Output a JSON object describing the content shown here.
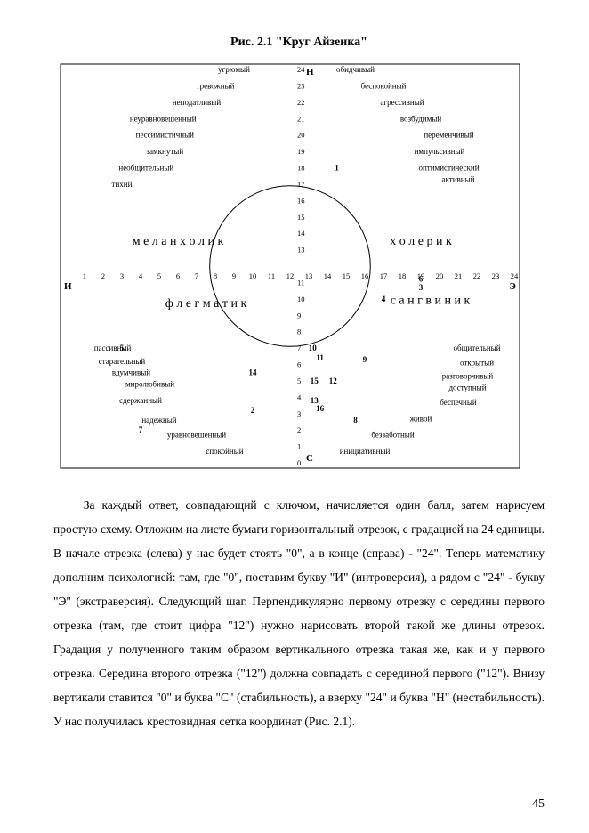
{
  "figure": {
    "caption": "Рис. 2.1   \"Круг Айзенка\"",
    "box": {
      "stroke": "#000000",
      "stroke_width": 1,
      "fill": "none"
    },
    "circle": {
      "cx_val": 12,
      "cy_val": 12,
      "radius_units": 4.3,
      "stroke": "#000000"
    },
    "axis_pole_labels": {
      "top": "Н",
      "bottom": "С",
      "left": "И",
      "right": "Э"
    },
    "quadrant_labels": {
      "top_left": "меланхолик",
      "top_right": "холерик",
      "bottom_left": "флегматик",
      "bottom_right": "сангвиник"
    },
    "x_ticks_left": [
      1,
      2,
      3,
      4,
      5,
      6,
      7,
      8,
      9,
      10,
      11,
      12
    ],
    "x_ticks_right": [
      13,
      14,
      15,
      16,
      17,
      18,
      19,
      20,
      21,
      22,
      23,
      24
    ],
    "y_ticks_top": [
      24,
      23,
      22,
      21,
      20,
      19,
      18,
      17,
      16,
      15,
      14,
      13
    ],
    "y_ticks_bottom": [
      11,
      10,
      9,
      8,
      7,
      6,
      5,
      4,
      3,
      2,
      1,
      0
    ],
    "traits": {
      "top_left": [
        "угрюмый",
        "тревожный",
        "неподатливый",
        "неуравновешенный",
        "пессимистичный",
        "замкнутый",
        "необщительный",
        "тихий"
      ],
      "top_right": [
        "обидчивый",
        "беспокойный",
        "агрессивный",
        "возбудимый",
        "переменчивый",
        "импульсивный",
        "оптимистический",
        "активный"
      ],
      "bottom_left": [
        "пассивный",
        "старательный",
        "вдумчивый",
        "миролюбивый",
        "сдержанный",
        "надежный",
        "уравновешенный",
        "спокойный"
      ],
      "bottom_right": [
        "общительный",
        "открытый",
        "разговорчивый",
        "доступный",
        "беспечный",
        "живой",
        "беззаботный",
        "инициативный"
      ]
    },
    "sample_points": [
      {
        "n": "1",
        "x": 14.5,
        "y": 18
      },
      {
        "n": "5",
        "x": 3,
        "y": 7
      },
      {
        "n": "14",
        "x": 10,
        "y": 5.5
      },
      {
        "n": "2",
        "x": 10,
        "y": 3.2
      },
      {
        "n": "7",
        "x": 4,
        "y": 2
      },
      {
        "n": "6",
        "x": 19,
        "y": 11.2
      },
      {
        "n": "3",
        "x": 19,
        "y": 10.7
      },
      {
        "n": "4",
        "x": 17,
        "y": 10
      },
      {
        "n": "10",
        "x": 13.2,
        "y": 7
      },
      {
        "n": "11",
        "x": 13.6,
        "y": 6.4
      },
      {
        "n": "9",
        "x": 16,
        "y": 6.3
      },
      {
        "n": "15",
        "x": 13.3,
        "y": 5
      },
      {
        "n": "12",
        "x": 14.3,
        "y": 5
      },
      {
        "n": "13",
        "x": 13.3,
        "y": 3.8
      },
      {
        "n": "16",
        "x": 13.6,
        "y": 3.3
      },
      {
        "n": "8",
        "x": 15.5,
        "y": 2.6
      }
    ],
    "font": {
      "trait_size": 9,
      "tick_size": 8.5,
      "quadrant_size": 14,
      "pole_size": 11,
      "point_size": 9
    }
  },
  "body_text": "За каждый ответ, совпадающий с ключом, начисляется один балл, затем нарисуем простую схему. Отложим на листе бумаги горизонтальный отрезок, с градацией на 24 единицы. В начале отрезка (слева) у нас будет стоять \"0\", а в конце (справа) - \"24\". Теперь математику дополним психологией: там, где \"0\", поставим букву \"И\" (интроверсия), а рядом с \"24\" - букву \"Э\" (экстраверсия). Следующий шаг. Перпендикулярно первому отрезку с середины первого отрезка (там, где стоит цифра \"12\") нужно нарисовать второй такой же длины отрезок. Градация у полученного таким образом вертикального отрезка такая же, как и у первого отрезка. Середина второго отрезка (\"12\") должна совпадать с серединой первого (\"12\"). Внизу вертикали ставится \"0\" и буква \"С\" (стабильность), а вверху \"24\" и буква \"Н\" (нестабильность). У нас получилась крестовидная сетка координат (Рис. 2.1).",
  "page_number": "45",
  "colors": {
    "text": "#000000",
    "bg": "#ffffff"
  }
}
